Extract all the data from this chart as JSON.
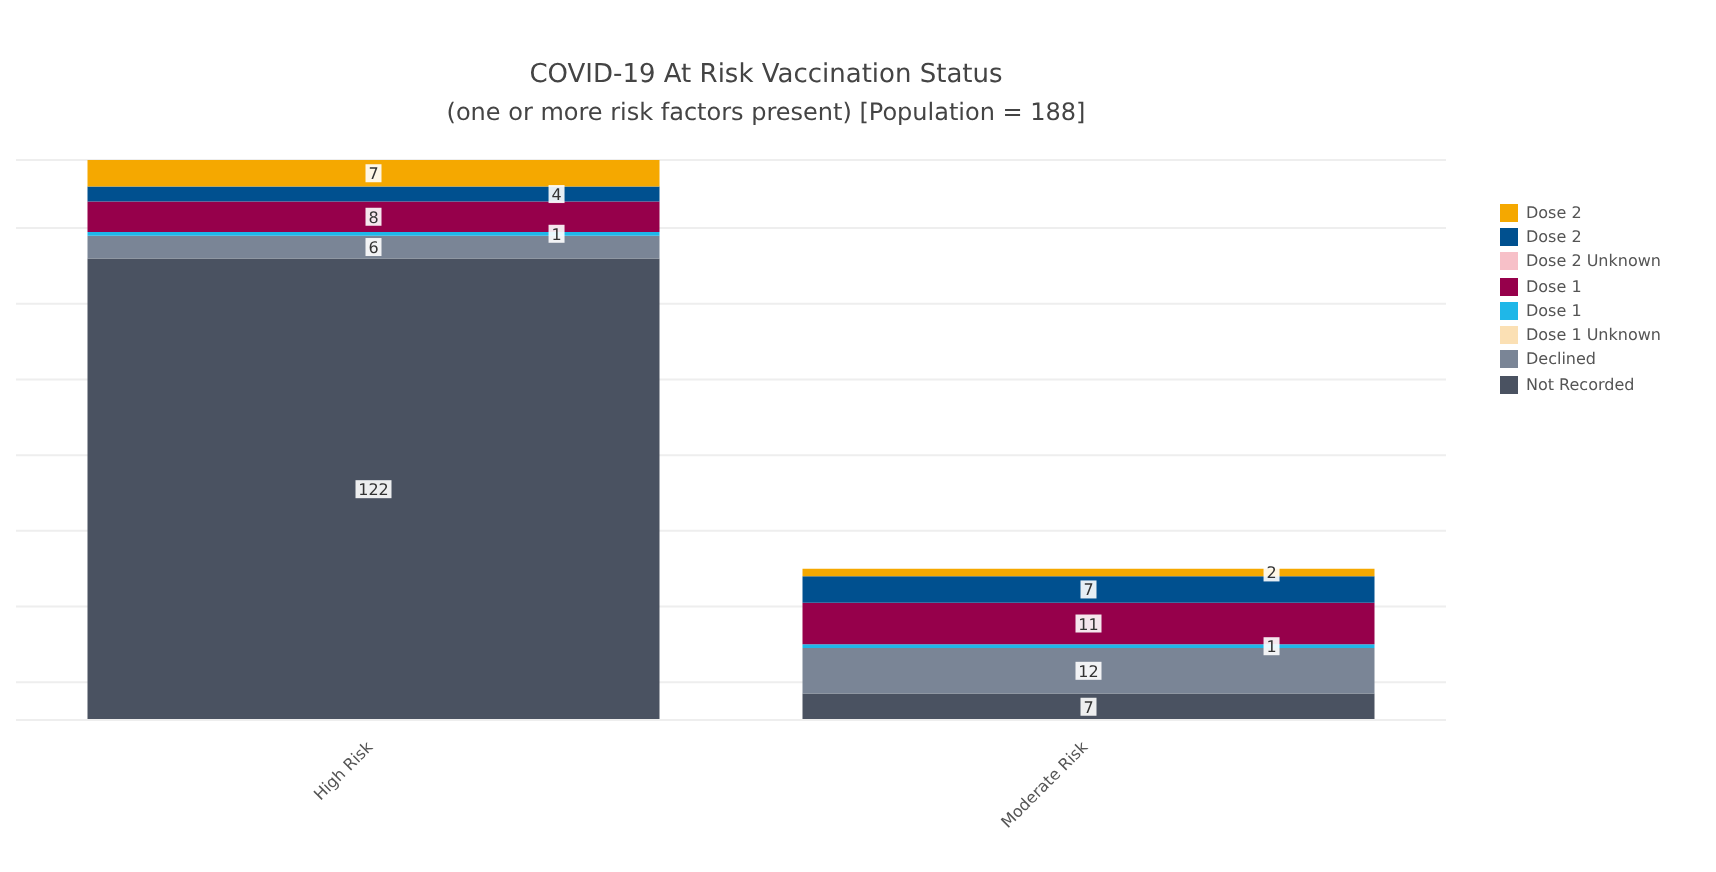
{
  "chart_data": {
    "type": "bar",
    "title": "COVID-19 At Risk Vaccination Status",
    "subtitle": "(one or more risk factors present) [Population = 188]",
    "categories": [
      "High Risk",
      "Moderate Risk"
    ],
    "stacked": true,
    "data_labels": true,
    "grid": "y",
    "legend": "top right",
    "series": [
      {
        "name": "Not Recorded",
        "color": "#4a5261",
        "values": [
          122,
          7
        ]
      },
      {
        "name": "Declined",
        "color": "#7a8596",
        "values": [
          6,
          12
        ]
      },
      {
        "name": "Dose 1 Unknown",
        "color": "#fbe0b4",
        "values": [
          null,
          null
        ]
      },
      {
        "name": "Dose 1",
        "color": "#1fb7e8",
        "values": [
          1,
          1
        ]
      },
      {
        "name": "Dose 1",
        "color": "#96004b",
        "values": [
          8,
          11
        ]
      },
      {
        "name": "Dose 2 Unknown",
        "color": "#f7c0c8",
        "values": [
          null,
          null
        ]
      },
      {
        "name": "Dose 2",
        "color": "#00508f",
        "values": [
          4,
          7
        ]
      },
      {
        "name": "Dose 2",
        "color": "#f5a800",
        "values": [
          7,
          2
        ]
      }
    ]
  }
}
